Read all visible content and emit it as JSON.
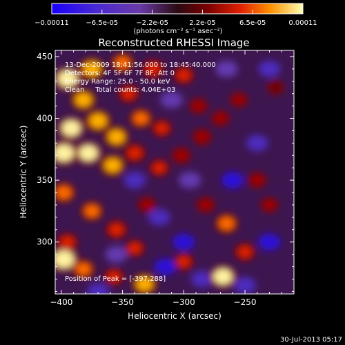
{
  "chart_data": {
    "type": "heatmap",
    "title": "Reconstructed RHESSI Image",
    "xlabel": "Heliocentric X (arcsec)",
    "ylabel": "Heliocentric Y (arcsec)",
    "xlim": [
      -405,
      -210
    ],
    "ylim": [
      258,
      455
    ],
    "xticks": [
      -400,
      -350,
      -300,
      -250
    ],
    "yticks": [
      300,
      350,
      400,
      450
    ],
    "colorbar": {
      "label": "(photons cm⁻² s⁻¹ asec⁻²)",
      "ticks": [
        "-0.00011",
        "-6.5e-05",
        "-2.2e-05",
        "2.2e-05",
        "6.5e-05",
        "0.00011"
      ],
      "range": [
        -0.00011,
        0.00011
      ]
    },
    "annotations": [
      "13-Dec-2009 18:41:56.000 to 18:45:40.000",
      "Detectors: 4F 5F 6F 7F 8F, Att 0",
      "Energy Range: 25.0 - 50.0 keV",
      "Clean     Total counts: 4.04E+03"
    ],
    "peak_label": "Position of Peak = [-397,288]",
    "peak_position": [
      -397,
      288
    ],
    "blobs": [
      {
        "x": -395,
        "y": 432,
        "v": 0.9
      },
      {
        "x": -375,
        "y": 440,
        "v": 0.75
      },
      {
        "x": -350,
        "y": 445,
        "v": 0.55
      },
      {
        "x": -382,
        "y": 415,
        "v": 0.7
      },
      {
        "x": -345,
        "y": 420,
        "v": 0.45
      },
      {
        "x": -325,
        "y": 440,
        "v": 0.5
      },
      {
        "x": -300,
        "y": 435,
        "v": 0.45
      },
      {
        "x": -392,
        "y": 392,
        "v": 0.85
      },
      {
        "x": -370,
        "y": 398,
        "v": 0.75
      },
      {
        "x": -355,
        "y": 385,
        "v": 0.7
      },
      {
        "x": -335,
        "y": 400,
        "v": 0.55
      },
      {
        "x": -318,
        "y": 392,
        "v": 0.4
      },
      {
        "x": -398,
        "y": 372,
        "v": 0.95
      },
      {
        "x": -378,
        "y": 372,
        "v": 0.85
      },
      {
        "x": -358,
        "y": 362,
        "v": 0.7
      },
      {
        "x": -340,
        "y": 372,
        "v": 0.5
      },
      {
        "x": -320,
        "y": 360,
        "v": 0.4
      },
      {
        "x": -302,
        "y": 370,
        "v": 0.35
      },
      {
        "x": -285,
        "y": 385,
        "v": 0.35
      },
      {
        "x": -270,
        "y": 400,
        "v": 0.3
      },
      {
        "x": -255,
        "y": 415,
        "v": 0.25
      },
      {
        "x": -240,
        "y": 350,
        "v": 0.3
      },
      {
        "x": -398,
        "y": 340,
        "v": 0.6
      },
      {
        "x": -375,
        "y": 325,
        "v": 0.55
      },
      {
        "x": -355,
        "y": 310,
        "v": 0.5
      },
      {
        "x": -330,
        "y": 330,
        "v": 0.3
      },
      {
        "x": -395,
        "y": 300,
        "v": 0.45
      },
      {
        "x": -340,
        "y": 295,
        "v": 0.4
      },
      {
        "x": -398,
        "y": 286,
        "v": 1.0
      },
      {
        "x": -382,
        "y": 278,
        "v": 0.55
      },
      {
        "x": -357,
        "y": 272,
        "v": 0.4
      },
      {
        "x": -332,
        "y": 266,
        "v": 0.7
      },
      {
        "x": -300,
        "y": 284,
        "v": 0.4
      },
      {
        "x": -268,
        "y": 272,
        "v": 0.85
      },
      {
        "x": -265,
        "y": 315,
        "v": 0.6
      },
      {
        "x": -250,
        "y": 292,
        "v": 0.45
      },
      {
        "x": -282,
        "y": 330,
        "v": 0.3
      },
      {
        "x": -230,
        "y": 330,
        "v": 0.25
      },
      {
        "x": -225,
        "y": 425,
        "v": 0.2
      },
      {
        "x": -288,
        "y": 410,
        "v": 0.3
      }
    ],
    "troughs": [
      {
        "x": -340,
        "y": 350,
        "v": -0.4
      },
      {
        "x": -320,
        "y": 320,
        "v": -0.35
      },
      {
        "x": -300,
        "y": 300,
        "v": -0.45
      },
      {
        "x": -315,
        "y": 280,
        "v": -0.5
      },
      {
        "x": -285,
        "y": 270,
        "v": -0.4
      },
      {
        "x": -260,
        "y": 350,
        "v": -0.45
      },
      {
        "x": -240,
        "y": 380,
        "v": -0.4
      },
      {
        "x": -230,
        "y": 300,
        "v": -0.5
      },
      {
        "x": -250,
        "y": 265,
        "v": -0.35
      },
      {
        "x": -295,
        "y": 350,
        "v": -0.3
      },
      {
        "x": -230,
        "y": 440,
        "v": -0.35
      },
      {
        "x": -265,
        "y": 440,
        "v": -0.3
      },
      {
        "x": -310,
        "y": 415,
        "v": -0.3
      },
      {
        "x": -355,
        "y": 290,
        "v": -0.3
      },
      {
        "x": -370,
        "y": 260,
        "v": -0.35
      }
    ]
  },
  "footer": {
    "timestamp": "30-Jul-2013 05:17"
  }
}
